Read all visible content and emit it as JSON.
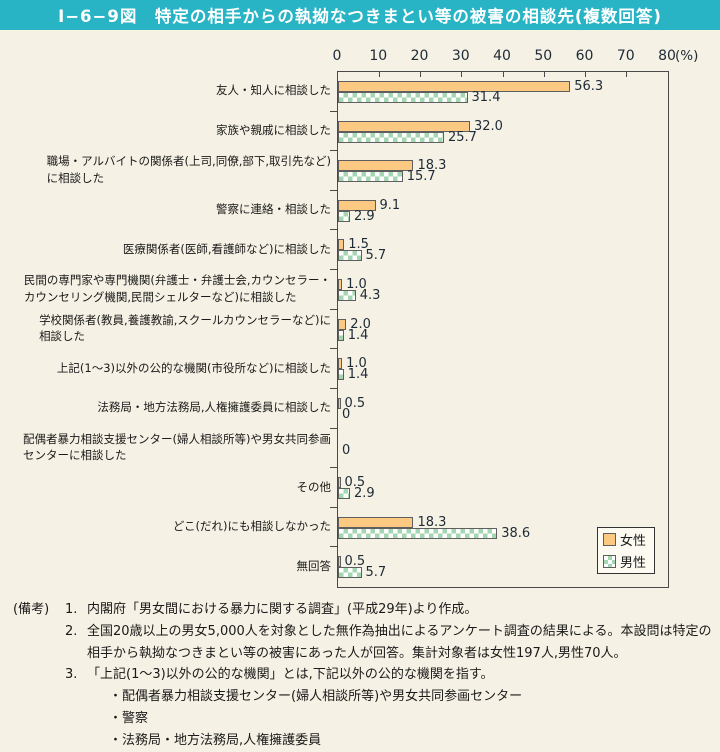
{
  "title": "Ⅰ−6−9図　特定の相手からの執拗なつきまとい等の被害の相談先(複数回答)",
  "legend": {
    "female": "女性",
    "male": "男性"
  },
  "colors": {
    "titlebar_bg": "#29b4c5",
    "page_bg": "#f5f1e4",
    "female_bar": "#fbc981",
    "male_bar_green": "#a5d6b2",
    "bar_border": "#5e5e5e",
    "plot_border": "#4a4a4a"
  },
  "chart_data": {
    "type": "bar",
    "orientation": "horizontal",
    "unit": "%",
    "axis": {
      "min": 0,
      "max": 80,
      "tick_step": 10,
      "unit_label": "(%)"
    },
    "grid": false,
    "legend_position": "bottom-right",
    "categories": [
      "友人・知人に相談した",
      "家族や親戚に相談した",
      "職場・アルバイトの関係者(上司,同僚,部下,取引先など)\nに相談した",
      "警察に連絡・相談した",
      "医療関係者(医師,看護師など)に相談した",
      "民間の専門家や専門機関(弁護士・弁護士会,カウンセラー・\nカウンセリング機関,民間シェルターなど)に相談した",
      "学校関係者(教員,養護教諭,スクールカウンセラーなど)に\n相談した",
      "上記(1〜3)以外の公的な機関(市役所など)に相談した",
      "法務局・地方法務局,人権擁護委員に相談した",
      "配偶者暴力相談支援センター(婦人相談所等)や男女共同参画\nセンターに相談した",
      "その他",
      "どこ(だれ)にも相談しなかった",
      "無回答"
    ],
    "series": [
      {
        "name": "女性",
        "values": [
          56.3,
          32.0,
          18.3,
          9.1,
          1.5,
          1.0,
          2.0,
          1.0,
          0.5,
          0,
          0.5,
          18.3,
          0.5
        ],
        "labels": [
          "56.3",
          "32.0",
          "18.3",
          "9.1",
          "1.5",
          "1.0",
          "2.0",
          "1.0",
          "0.5",
          "0",
          "0.5",
          "18.3",
          "0.5"
        ]
      },
      {
        "name": "男性",
        "values": [
          31.4,
          25.7,
          15.7,
          2.9,
          5.7,
          4.3,
          1.4,
          1.4,
          0,
          0,
          2.9,
          38.6,
          5.7
        ],
        "labels": [
          "31.4",
          "25.7",
          "15.7",
          "2.9",
          "5.7",
          "4.3",
          "1.4",
          "1.4",
          "0",
          "0",
          "2.9",
          "38.6",
          "5.7"
        ]
      }
    ]
  },
  "notes": {
    "prefix": "(備考)",
    "items": [
      {
        "no": "1.",
        "text": "内閣府「男女間における暴力に関する調査」(平成29年)より作成。",
        "bullets": []
      },
      {
        "no": "2.",
        "text": "全国20歳以上の男女5,000人を対象とした無作為抽出によるアンケート調査の結果による。本設問は特定の相手から執拗なつきまとい等の被害にあった人が回答。集計対象者は女性197人,男性70人。",
        "bullets": []
      },
      {
        "no": "3.",
        "text": "「上記(1〜3)以外の公的な機関」とは,下記以外の公的な機関を指す。",
        "bullets": [
          "・配偶者暴力相談支援センター(婦人相談所等)や男女共同参画センター",
          "・警察",
          "・法務局・地方法務局,人権擁護委員"
        ]
      }
    ]
  }
}
